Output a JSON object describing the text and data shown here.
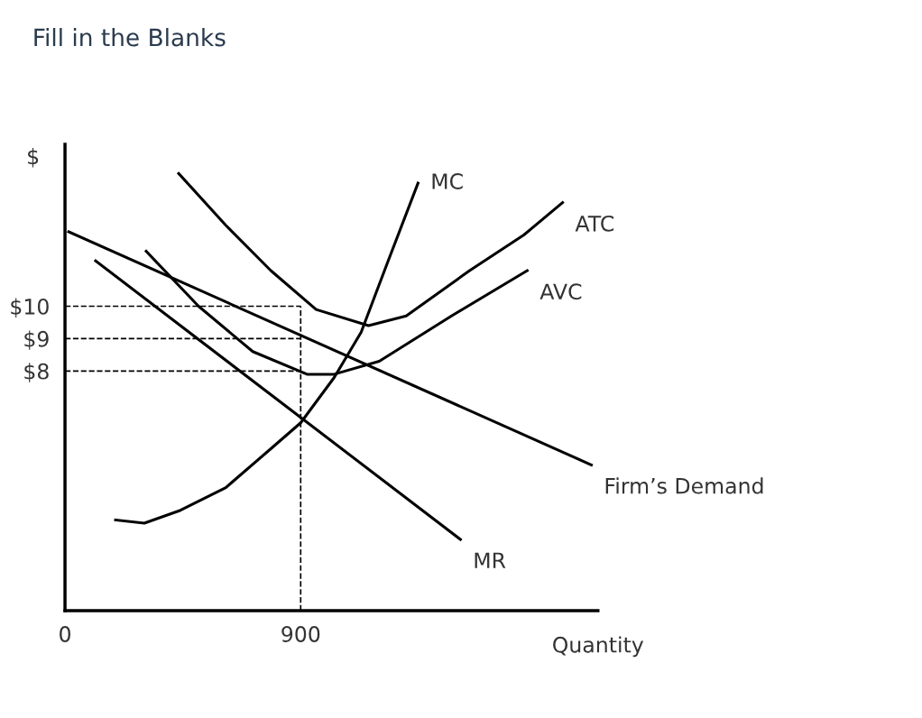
{
  "chart_data": {
    "type": "line",
    "title": "Fill in the Blanks",
    "xlabel": "Quantity",
    "ylabel": "$",
    "xlim": [
      0,
      2035
    ],
    "ylim": [
      0.6,
      15
    ],
    "xticks": [
      0,
      900
    ],
    "yticks": [
      {
        "value": 8,
        "label": "$8"
      },
      {
        "value": 9,
        "label": "$9"
      },
      {
        "value": 10,
        "label": "$10"
      }
    ],
    "grid": false,
    "marker": "none",
    "line_style": "solid",
    "series": [
      {
        "name": "MC",
        "color": "#000000",
        "x": [
          193,
          303,
          441,
          614,
          786,
          900,
          1028,
          1131,
          1234,
          1348
        ],
        "values": [
          3.4,
          3.3,
          3.7,
          4.4,
          5.6,
          6.4,
          7.8,
          9.2,
          11.4,
          13.8
        ]
      },
      {
        "name": "ATC",
        "color": "#000000",
        "x": [
          434,
          614,
          786,
          959,
          1159,
          1303,
          1545,
          1752,
          1900
        ],
        "values": [
          14.1,
          12.5,
          11.1,
          9.9,
          9.4,
          9.7,
          11.1,
          12.2,
          13.2
        ]
      },
      {
        "name": "AVC",
        "color": "#000000",
        "x": [
          310,
          510,
          717,
          924,
          1028,
          1200,
          1476,
          1765
        ],
        "values": [
          11.7,
          10.0,
          8.6,
          7.9,
          7.9,
          8.3,
          9.7,
          11.1
        ]
      },
      {
        "name": "Firm’s Demand",
        "color": "#000000",
        "x": [
          14,
          2010
        ],
        "values": [
          12.3,
          5.1
        ]
      },
      {
        "name": "MR",
        "color": "#000000",
        "x": [
          117,
          1510
        ],
        "values": [
          11.4,
          2.8
        ]
      }
    ],
    "ref_lines": [
      {
        "axis": "y",
        "value": 10,
        "line_style": "dashed",
        "color": "#000000"
      },
      {
        "axis": "y",
        "value": 9,
        "line_style": "dashed",
        "color": "#000000"
      },
      {
        "axis": "y",
        "value": 8,
        "line_style": "dashed",
        "color": "#000000"
      },
      {
        "axis": "x",
        "value": 900,
        "line_style": "dashed",
        "color": "#000000"
      }
    ]
  }
}
